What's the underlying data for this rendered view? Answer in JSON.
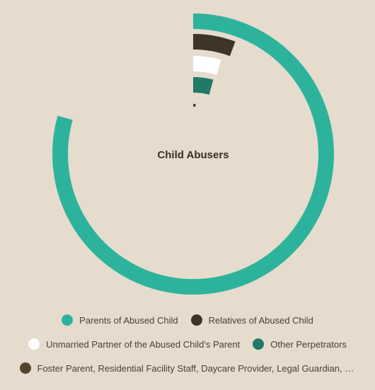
{
  "chart_data": {
    "type": "radial-bar",
    "title": "Child Abusers",
    "max": 100,
    "series": [
      {
        "name": "Parents of Abused Child",
        "value": 79.4,
        "color": "#2db39c"
      },
      {
        "name": "Relatives of Abused Child",
        "value": 5.7,
        "color": "#3e3528"
      },
      {
        "name": "Unmarried Partner of the Abused Child's Parent",
        "value": 4.6,
        "color": "#ffffff"
      },
      {
        "name": "Other Perpetrators",
        "value": 4.2,
        "color": "#1f7a66"
      },
      {
        "name": "Foster Parent, Residential Facility Staff, Daycare Provider, Legal Guardian, Friend",
        "value": 0.8,
        "color": "#54442c"
      }
    ],
    "legend_position": "bottom"
  },
  "legend": {
    "items": [
      {
        "label": "Parents of Abused Child",
        "color": "#2db39c"
      },
      {
        "label": "Relatives of Abused Child",
        "color": "#3e3528"
      },
      {
        "label": "Unmarried Partner of the Abused Child's Parent",
        "color": "#ffffff"
      },
      {
        "label": "Other Perpetrators",
        "color": "#1f7a66"
      },
      {
        "label": "Foster Parent, Residential Facility Staff, Daycare Provider, Legal Guardian, Frien...",
        "color": "#54442c"
      }
    ]
  }
}
